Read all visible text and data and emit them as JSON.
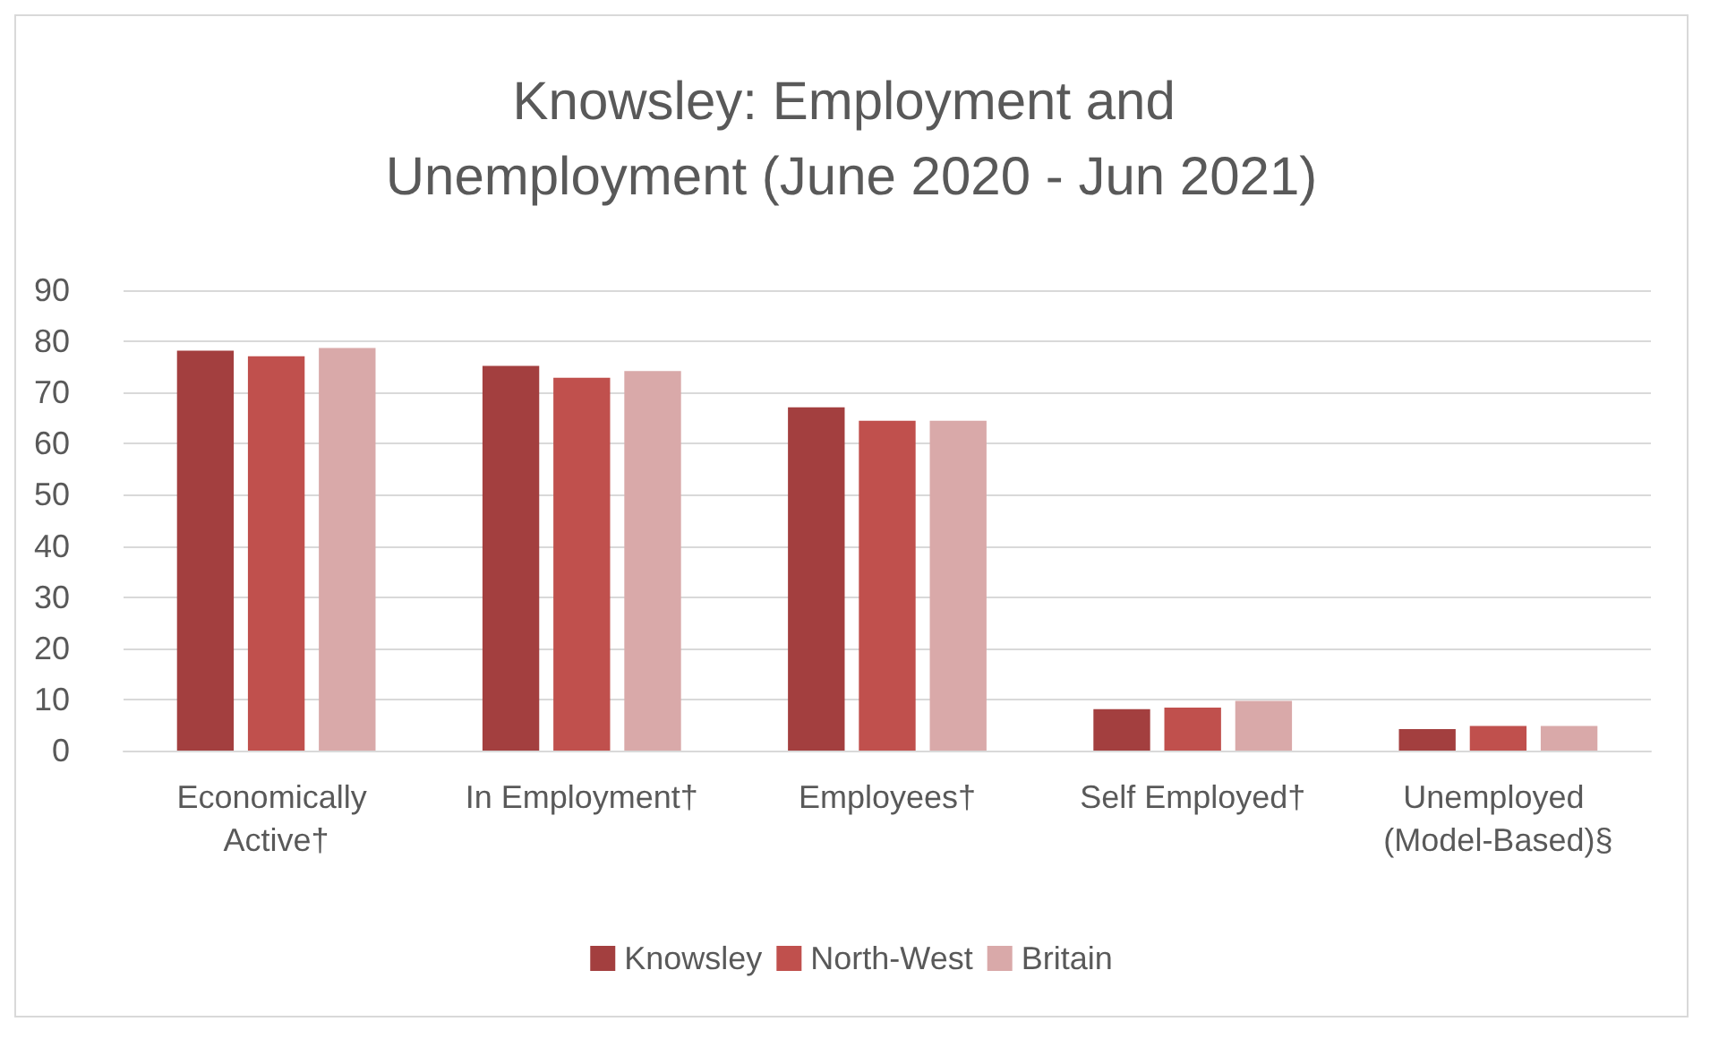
{
  "chart_data": {
    "type": "bar",
    "title": "Knowsley: Employment and Unemployment (June 2020 - Jun 2021)",
    "categories": [
      "Economically Active†",
      "In Employment†",
      "Employees†",
      "Self Employed†",
      "Unemployed (Model-Based)§"
    ],
    "series": [
      {
        "name": "Knowsley",
        "color": "#a33f3f",
        "values": [
          78.2,
          75.2,
          67.1,
          8.1,
          4.2
        ]
      },
      {
        "name": "North-West",
        "color": "#c0504d",
        "values": [
          77.1,
          72.9,
          64.5,
          8.4,
          4.8
        ]
      },
      {
        "name": "Britain",
        "color": "#d9a9a9",
        "values": [
          78.7,
          74.2,
          64.5,
          9.7,
          4.8
        ]
      }
    ],
    "ylim": [
      0,
      90
    ],
    "yticks": [
      0,
      10,
      20,
      30,
      40,
      50,
      60,
      70,
      80,
      90
    ],
    "grid": "y",
    "legend": "bottom"
  }
}
